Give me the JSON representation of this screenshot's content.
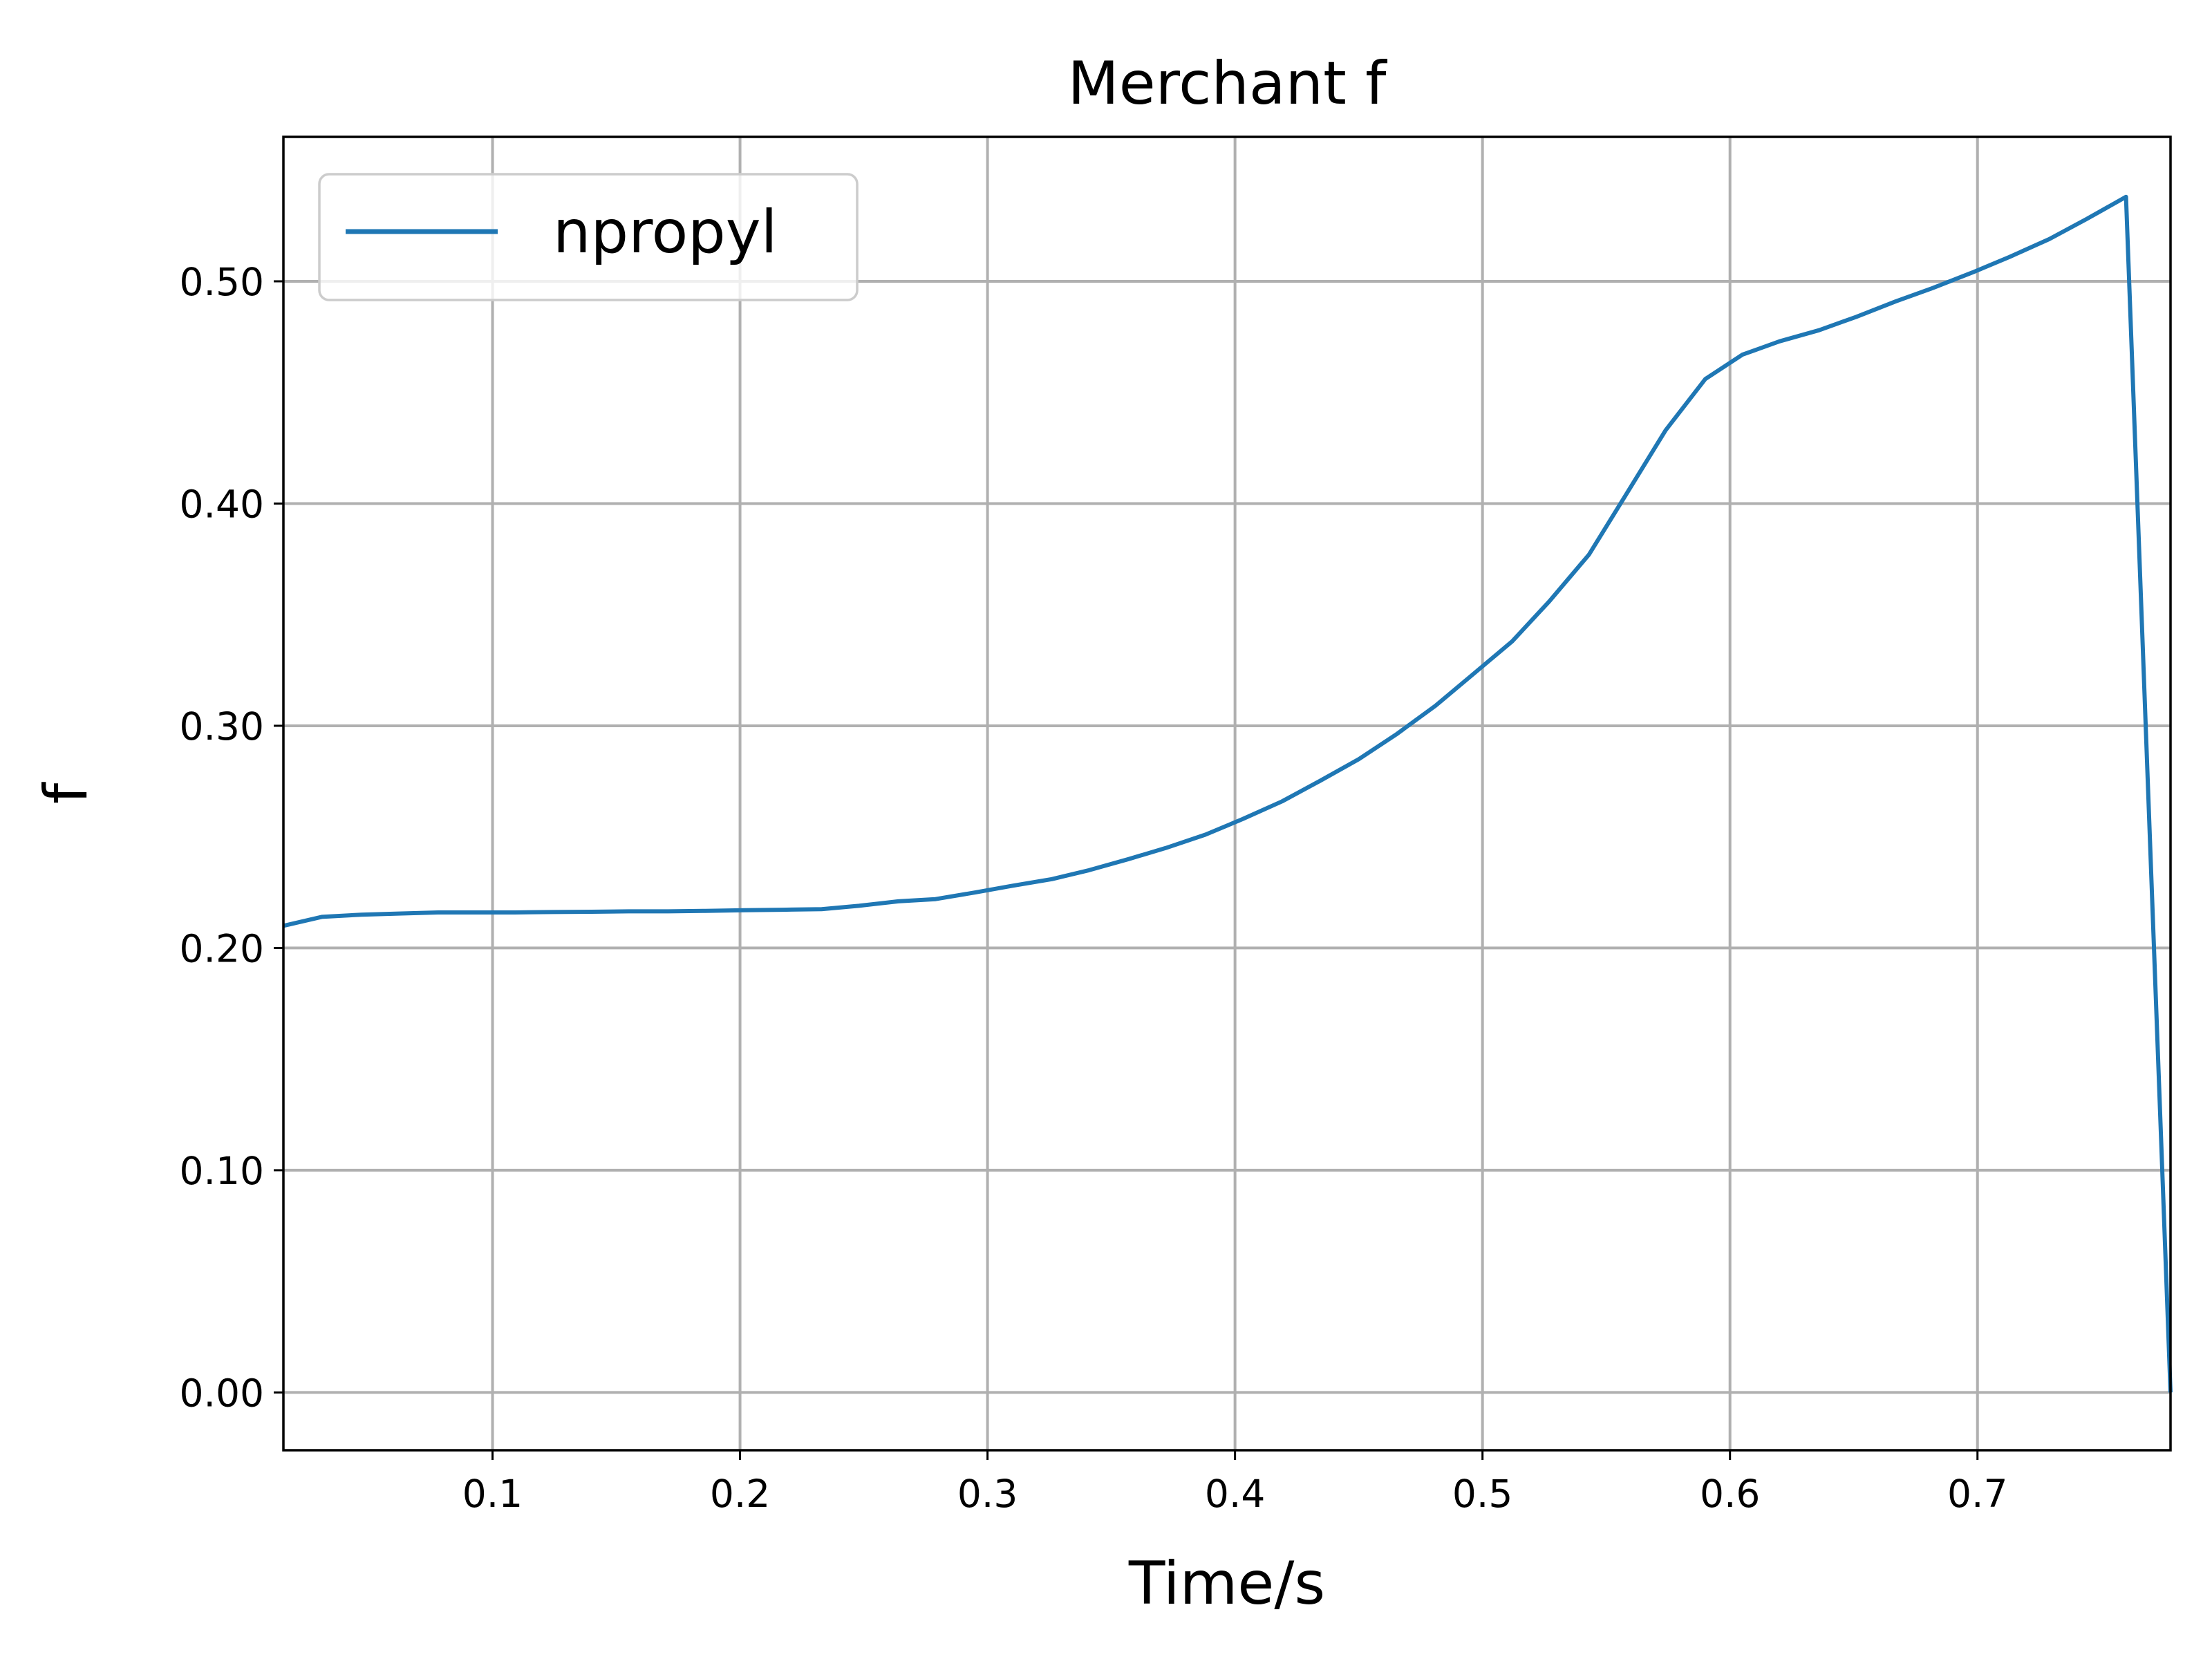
{
  "chart_data": {
    "type": "line",
    "title": "Merchant f",
    "xlabel": "Time/s",
    "ylabel": "f",
    "xlim": [
      0.0155,
      0.778
    ],
    "ylim": [
      -0.026,
      0.565
    ],
    "xticks": [
      0.1,
      0.2,
      0.3,
      0.4,
      0.5,
      0.6,
      0.7
    ],
    "xtick_labels": [
      "0.1",
      "0.2",
      "0.3",
      "0.4",
      "0.5",
      "0.6",
      "0.7"
    ],
    "yticks": [
      0.0,
      0.1,
      0.2,
      0.3,
      0.4,
      0.5
    ],
    "ytick_labels": [
      "0.00",
      "0.10",
      "0.20",
      "0.30",
      "0.40",
      "0.50"
    ],
    "grid": true,
    "legend_position": "upper-left",
    "colors": {
      "series": "#1f77b4"
    },
    "series": [
      {
        "name": "npropyl",
        "x": [
          0.0155,
          0.031,
          0.047,
          0.062,
          0.078,
          0.093,
          0.109,
          0.124,
          0.14,
          0.155,
          0.171,
          0.186,
          0.202,
          0.217,
          0.233,
          0.248,
          0.264,
          0.279,
          0.295,
          0.31,
          0.326,
          0.341,
          0.357,
          0.372,
          0.388,
          0.403,
          0.419,
          0.434,
          0.45,
          0.465,
          0.481,
          0.496,
          0.512,
          0.527,
          0.543,
          0.558,
          0.574,
          0.59,
          0.605,
          0.62,
          0.636,
          0.651,
          0.667,
          0.682,
          0.698,
          0.713,
          0.729,
          0.744,
          0.76,
          0.778
        ],
        "y": [
          0.21,
          0.214,
          0.215,
          0.2155,
          0.216,
          0.216,
          0.216,
          0.2162,
          0.2163,
          0.2165,
          0.2165,
          0.2167,
          0.217,
          0.2172,
          0.2175,
          0.219,
          0.221,
          0.222,
          0.225,
          0.228,
          0.231,
          0.235,
          0.24,
          0.245,
          0.251,
          0.258,
          0.266,
          0.275,
          0.285,
          0.296,
          0.309,
          0.323,
          0.338,
          0.356,
          0.377,
          0.404,
          0.433,
          0.456,
          0.467,
          0.473,
          0.478,
          0.484,
          0.491,
          0.497,
          0.504,
          0.511,
          0.519,
          0.528,
          0.538,
          0.0
        ]
      }
    ]
  }
}
